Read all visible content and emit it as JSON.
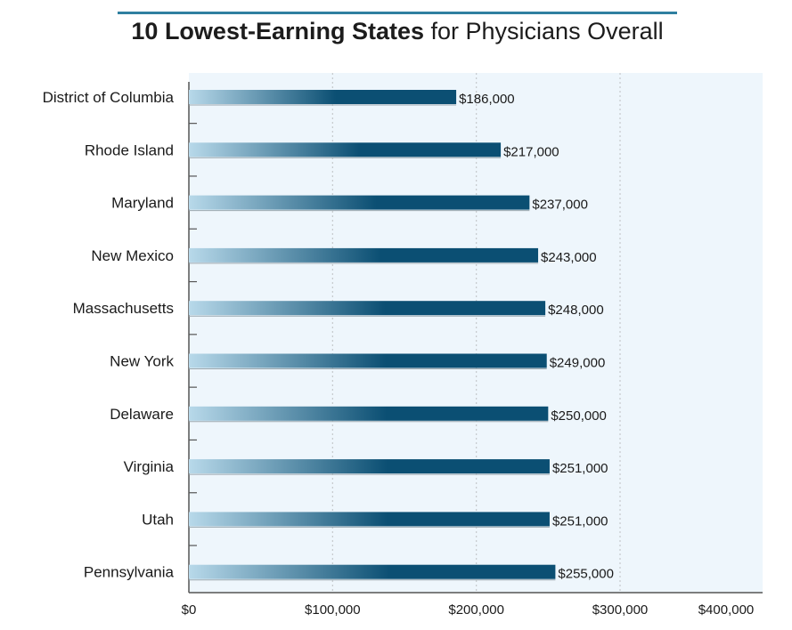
{
  "chart_data": {
    "type": "bar",
    "orientation": "horizontal",
    "title_bold": "10 Lowest-Earning States",
    "title_rest": " for Physicians Overall",
    "categories": [
      "District of Columbia",
      "Rhode Island",
      "Maryland",
      "New Mexico",
      "Massachusetts",
      "New York",
      "Delaware",
      "Virginia",
      "Utah",
      "Pennsylvania"
    ],
    "values": [
      186000,
      217000,
      237000,
      243000,
      248000,
      249000,
      250000,
      251000,
      251000,
      255000
    ],
    "value_labels": [
      "$186,000",
      "$217,000",
      "$237,000",
      "$243,000",
      "$248,000",
      "$249,000",
      "$250,000",
      "$251,000",
      "$251,000",
      "$255,000"
    ],
    "x_ticks": [
      0,
      100000,
      200000,
      300000,
      400000
    ],
    "x_tick_labels": [
      "$0",
      "$100,000",
      "$200,000",
      "$300,000",
      "$400,000"
    ],
    "xlim": [
      0,
      400000
    ],
    "xlabel": "",
    "ylabel": "",
    "grid": "vertical dotted",
    "legend": "none",
    "colors": {
      "bar_dark": "#0b4f73",
      "bar_light": "#b8d9ea",
      "plot_background": "#eef6fc",
      "title_rule": "#2f7fa0",
      "grid": "#c5c9cc"
    }
  }
}
